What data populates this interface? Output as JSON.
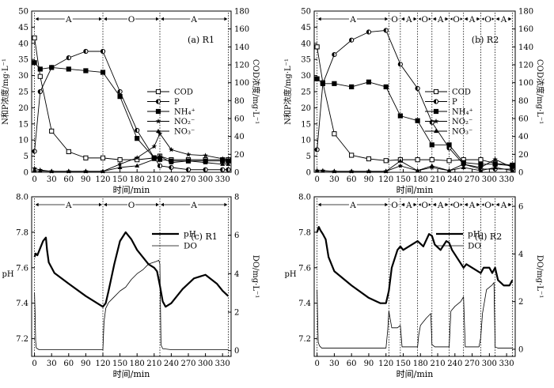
{
  "xlabel": "时间/min",
  "colors": {
    "line": "#000000",
    "background": "#ffffff"
  },
  "chart_data": [
    {
      "id": "a",
      "panel_label": "(a) R1",
      "type": "line",
      "ylabel_left": "N和P浓度/mg·L⁻¹",
      "ylabel_right": "COD浓度/mg·L⁻¹",
      "xlim": [
        -5,
        345
      ],
      "xticks": [
        0,
        30,
        60,
        90,
        120,
        150,
        180,
        210,
        240,
        270,
        300,
        330
      ],
      "ylim_left": [
        0,
        50
      ],
      "yticks_left": [
        0,
        5,
        10,
        15,
        20,
        25,
        30,
        35,
        40,
        45,
        50
      ],
      "ylim_right": [
        0,
        180
      ],
      "yticks_right": [
        0,
        20,
        40,
        60,
        80,
        100,
        120,
        140,
        160,
        180
      ],
      "phases": [
        {
          "label": "A",
          "from": 0,
          "to": 120
        },
        {
          "label": "O",
          "from": 120,
          "to": 220
        },
        {
          "label": "A",
          "from": 220,
          "to": 340
        }
      ],
      "legend": [
        "COD",
        "P",
        "NH₄⁺",
        "NO₂⁻",
        "NO₃⁻"
      ],
      "series": [
        {
          "name": "COD",
          "axis": "right",
          "marker": "square-open",
          "x": [
            0,
            10,
            30,
            60,
            90,
            120,
            150,
            180,
            210,
            220,
            240,
            270,
            300,
            330,
            340
          ],
          "y": [
            150,
            107,
            46,
            23,
            16,
            16,
            14,
            14,
            16,
            18,
            14,
            14,
            14,
            14,
            14
          ]
        },
        {
          "name": "P",
          "axis": "left",
          "marker": "circle-half",
          "x": [
            0,
            10,
            30,
            60,
            90,
            120,
            150,
            180,
            210,
            220,
            240,
            270,
            300,
            330,
            340
          ],
          "y": [
            6.5,
            25,
            32.5,
            35.5,
            37.5,
            37.5,
            25,
            13,
            4.5,
            2,
            1.5,
            0.8,
            0.8,
            0.8,
            0.8
          ]
        },
        {
          "name": "NH₄⁺",
          "axis": "left",
          "marker": "square",
          "x": [
            0,
            10,
            30,
            60,
            90,
            120,
            150,
            180,
            210,
            220,
            240,
            270,
            300,
            330,
            340
          ],
          "y": [
            34,
            32,
            32.5,
            32,
            31.5,
            31,
            23.5,
            10.5,
            4.5,
            4,
            3.5,
            3.5,
            3.5,
            3.5,
            3.5
          ]
        },
        {
          "name": "NO₂⁻",
          "axis": "left",
          "marker": "star",
          "x": [
            0,
            10,
            30,
            60,
            90,
            120,
            150,
            180,
            210,
            220,
            240,
            270,
            300,
            330,
            340
          ],
          "y": [
            1.2,
            0.7,
            0.3,
            0.3,
            0.3,
            0.3,
            2.5,
            4.5,
            8,
            12,
            7,
            5.5,
            5.2,
            4.2,
            3.8
          ]
        },
        {
          "name": "NO₃⁻",
          "axis": "left",
          "marker": "triangle",
          "x": [
            0,
            10,
            30,
            60,
            90,
            120,
            150,
            180,
            210,
            220,
            240,
            270,
            300,
            330,
            340
          ],
          "y": [
            0.5,
            0.4,
            0.3,
            0.3,
            0.3,
            0.3,
            1.5,
            2,
            4,
            5,
            3,
            3.5,
            3,
            2.5,
            2.5
          ]
        }
      ]
    },
    {
      "id": "b",
      "panel_label": "(b) R2",
      "type": "line",
      "ylabel_left": "N和P浓度/mg·L⁻¹",
      "ylabel_right": "COD浓度/mg·L⁻¹",
      "xlim": [
        -5,
        345
      ],
      "xticks": [
        0,
        30,
        60,
        90,
        120,
        150,
        180,
        210,
        240,
        270,
        300,
        330
      ],
      "ylim_left": [
        0,
        50
      ],
      "yticks_left": [
        0,
        5,
        10,
        15,
        20,
        25,
        30,
        35,
        40,
        45,
        50
      ],
      "ylim_right": [
        0,
        180
      ],
      "yticks_right": [
        0,
        20,
        40,
        60,
        80,
        100,
        120,
        140,
        160,
        180
      ],
      "phases": [
        {
          "label": "A",
          "from": 0,
          "to": 125
        },
        {
          "label": "O",
          "from": 125,
          "to": 145
        },
        {
          "label": "A",
          "from": 145,
          "to": 175
        },
        {
          "label": "O",
          "from": 175,
          "to": 200
        },
        {
          "label": "A",
          "from": 200,
          "to": 230
        },
        {
          "label": "O",
          "from": 230,
          "to": 255
        },
        {
          "label": "A",
          "from": 255,
          "to": 285
        },
        {
          "label": "O",
          "from": 285,
          "to": 310
        },
        {
          "label": "A",
          "from": 310,
          "to": 340
        }
      ],
      "legend": [
        "COD",
        "P",
        "NH₄⁺",
        "NO₂⁻",
        "NO₃⁻"
      ],
      "series": [
        {
          "name": "COD",
          "axis": "right",
          "marker": "square-open",
          "x": [
            0,
            10,
            30,
            60,
            90,
            120,
            145,
            175,
            200,
            230,
            255,
            285,
            310,
            340
          ],
          "y": [
            140,
            100,
            43,
            19,
            15,
            13,
            14,
            14,
            14,
            13,
            14,
            14,
            10,
            8
          ]
        },
        {
          "name": "P",
          "axis": "left",
          "marker": "circle-half",
          "x": [
            0,
            10,
            30,
            60,
            90,
            120,
            145,
            175,
            200,
            230,
            255,
            285,
            310,
            340
          ],
          "y": [
            7,
            27.5,
            36.5,
            41,
            43.5,
            44,
            33.5,
            26,
            15.5,
            7.5,
            2.5,
            1,
            1,
            1
          ]
        },
        {
          "name": "NH₄⁺",
          "axis": "left",
          "marker": "square",
          "x": [
            0,
            10,
            30,
            60,
            90,
            120,
            145,
            175,
            200,
            230,
            255,
            285,
            310,
            340
          ],
          "y": [
            29,
            27.5,
            27.5,
            26.5,
            28,
            26.5,
            17.5,
            16,
            8.5,
            8.5,
            3,
            2.5,
            2.5,
            2
          ]
        },
        {
          "name": "NO₂⁻",
          "axis": "left",
          "marker": "star",
          "x": [
            0,
            10,
            30,
            60,
            90,
            120,
            145,
            175,
            200,
            230,
            255,
            285,
            310,
            340
          ],
          "y": [
            0.5,
            0.5,
            0.3,
            0.3,
            0.3,
            0.3,
            2,
            0.5,
            1.5,
            0.5,
            2.5,
            1.5,
            4,
            1.5
          ]
        },
        {
          "name": "NO₃⁻",
          "axis": "left",
          "marker": "triangle",
          "x": [
            0,
            10,
            30,
            60,
            90,
            120,
            145,
            175,
            200,
            230,
            255,
            285,
            310,
            340
          ],
          "y": [
            0.5,
            0.4,
            0.3,
            0.3,
            0.3,
            0.3,
            3.5,
            0.5,
            2,
            0.5,
            1.5,
            0.5,
            1.5,
            0.5
          ]
        }
      ]
    },
    {
      "id": "c",
      "panel_label": "(c) R1",
      "type": "line",
      "ylabel_left": "pH",
      "ylabel_right": "DO/mg·L⁻¹",
      "xlim": [
        -5,
        345
      ],
      "xticks": [
        0,
        30,
        60,
        90,
        120,
        150,
        180,
        210,
        240,
        270,
        300,
        330
      ],
      "ylim_left": [
        7.1,
        8.0
      ],
      "yticks_left": [
        7.2,
        7.4,
        7.6,
        7.8,
        8.0
      ],
      "ylim_right": [
        -0.3,
        8
      ],
      "yticks_right": [
        0,
        2,
        4,
        6,
        8
      ],
      "phases": [
        {
          "label": "A",
          "from": 0,
          "to": 120
        },
        {
          "label": "O",
          "from": 120,
          "to": 220
        },
        {
          "label": "A",
          "from": 220,
          "to": 340
        }
      ],
      "legend": [
        "pH",
        "DO"
      ],
      "series": [
        {
          "name": "pH",
          "axis": "left",
          "style": "bold",
          "x": [
            0,
            2,
            5,
            10,
            15,
            20,
            22,
            25,
            35,
            60,
            90,
            110,
            120,
            125,
            130,
            140,
            150,
            160,
            170,
            180,
            190,
            200,
            210,
            215,
            220,
            225,
            230,
            240,
            260,
            280,
            300,
            320,
            330,
            340
          ],
          "y": [
            7.66,
            7.68,
            7.67,
            7.71,
            7.75,
            7.77,
            7.7,
            7.63,
            7.57,
            7.51,
            7.44,
            7.4,
            7.38,
            7.4,
            7.47,
            7.62,
            7.75,
            7.8,
            7.76,
            7.7,
            7.66,
            7.62,
            7.6,
            7.58,
            7.5,
            7.41,
            7.38,
            7.4,
            7.48,
            7.54,
            7.56,
            7.51,
            7.47,
            7.44
          ]
        },
        {
          "name": "DO",
          "axis": "right",
          "style": "thin",
          "x": [
            0,
            1,
            2,
            3,
            5,
            8,
            10,
            30,
            60,
            90,
            120,
            122,
            125,
            130,
            140,
            150,
            160,
            170,
            180,
            190,
            200,
            210,
            215,
            218,
            220,
            222,
            225,
            240,
            270,
            300,
            330,
            340
          ],
          "y": [
            3,
            2,
            0.5,
            0.15,
            0.1,
            0.05,
            0.05,
            0.05,
            0.05,
            0.05,
            0.05,
            1.5,
            2.2,
            2.5,
            2.8,
            3.1,
            3.3,
            3.7,
            4.0,
            4.2,
            4.5,
            4.6,
            4.65,
            4.7,
            4.5,
            0.3,
            0.1,
            0.05,
            0.05,
            0.05,
            0.05,
            0.05
          ]
        }
      ]
    },
    {
      "id": "d",
      "panel_label": "(d) R2",
      "type": "line",
      "ylabel_left": "pH",
      "ylabel_right": "DO/mg·L⁻¹",
      "xlim": [
        -5,
        345
      ],
      "xticks": [
        0,
        30,
        60,
        90,
        120,
        150,
        180,
        210,
        240,
        270,
        300,
        330
      ],
      "ylim_left": [
        7.1,
        8.0
      ],
      "yticks_left": [
        7.2,
        7.4,
        7.6,
        7.8,
        8.0
      ],
      "ylim_right": [
        -0.3,
        6.4
      ],
      "yticks_right": [
        0,
        2,
        4,
        6
      ],
      "phases": [
        {
          "label": "A",
          "from": 0,
          "to": 125
        },
        {
          "label": "O",
          "from": 125,
          "to": 145
        },
        {
          "label": "A",
          "from": 145,
          "to": 175
        },
        {
          "label": "O",
          "from": 175,
          "to": 200
        },
        {
          "label": "A",
          "from": 200,
          "to": 230
        },
        {
          "label": "O",
          "from": 230,
          "to": 255
        },
        {
          "label": "A",
          "from": 255,
          "to": 285
        },
        {
          "label": "O",
          "from": 285,
          "to": 310
        },
        {
          "label": "A",
          "from": 310,
          "to": 340
        }
      ],
      "legend": [
        "pH",
        "DO"
      ],
      "series": [
        {
          "name": "pH",
          "axis": "left",
          "style": "bold",
          "x": [
            0,
            3,
            6,
            10,
            15,
            20,
            30,
            60,
            90,
            110,
            120,
            125,
            130,
            140,
            145,
            150,
            165,
            175,
            185,
            195,
            200,
            205,
            215,
            225,
            230,
            235,
            245,
            255,
            260,
            270,
            285,
            290,
            300,
            305,
            310,
            315,
            325,
            335,
            340
          ],
          "y": [
            7.8,
            7.83,
            7.81,
            7.79,
            7.76,
            7.66,
            7.58,
            7.5,
            7.43,
            7.4,
            7.4,
            7.47,
            7.6,
            7.7,
            7.72,
            7.7,
            7.73,
            7.75,
            7.72,
            7.79,
            7.78,
            7.73,
            7.7,
            7.75,
            7.74,
            7.7,
            7.65,
            7.6,
            7.62,
            7.6,
            7.57,
            7.6,
            7.6,
            7.57,
            7.6,
            7.53,
            7.5,
            7.5,
            7.53
          ]
        },
        {
          "name": "DO",
          "axis": "right",
          "style": "thin",
          "x": [
            0,
            1,
            2,
            4,
            8,
            30,
            60,
            90,
            120,
            123,
            125,
            130,
            140,
            145,
            148,
            150,
            175,
            177,
            180,
            190,
            198,
            200,
            205,
            225,
            230,
            233,
            240,
            250,
            255,
            258,
            260,
            282,
            285,
            288,
            295,
            305,
            308,
            310,
            315,
            340
          ],
          "y": [
            2.5,
            1.2,
            0.3,
            0.15,
            0.05,
            0.05,
            0.05,
            0.05,
            0.05,
            0.8,
            1.6,
            0.9,
            0.9,
            1.0,
            0.1,
            0.1,
            0.1,
            0.6,
            1.0,
            1.3,
            1.5,
            0.2,
            0.1,
            0.1,
            0.1,
            1.6,
            1.8,
            2.0,
            2.2,
            0.1,
            0.1,
            0.1,
            0.5,
            1.5,
            2.5,
            2.7,
            2.8,
            0.1,
            0.05,
            0.05
          ]
        }
      ]
    }
  ]
}
